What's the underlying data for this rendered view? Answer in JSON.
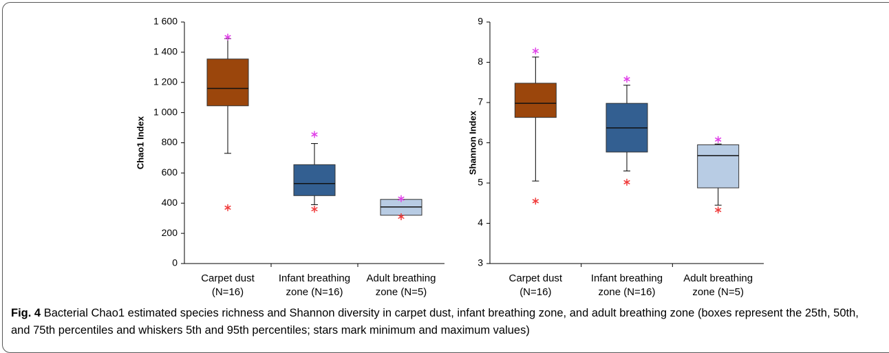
{
  "chart_data": [
    {
      "type": "box",
      "ylabel": "Chao1 Index",
      "categories": [
        [
          "Carpet dust",
          "(N=16)"
        ],
        [
          "Infant breathing",
          "zone (N=16)"
        ],
        [
          "Adult breathing",
          "zone (N=5)"
        ]
      ],
      "colors": [
        "#9b460c",
        "#335f91",
        "#b8cce4"
      ],
      "boxes": [
        {
          "whisker_low": 730,
          "q1": 1045,
          "median": 1160,
          "q3": 1355,
          "whisker_high": 1490,
          "min": 370,
          "max": 1500
        },
        {
          "whisker_low": 390,
          "q1": 450,
          "median": 530,
          "q3": 655,
          "whisker_high": 795,
          "min": 360,
          "max": 855
        },
        {
          "whisker_low": 320,
          "q1": 320,
          "median": 375,
          "q3": 425,
          "whisker_high": 425,
          "min": 310,
          "max": 430
        }
      ],
      "min_color": "#f03a3a",
      "max_color": "#e040e8",
      "ylim": [
        0,
        1600
      ],
      "yticks": [
        0,
        200,
        400,
        600,
        800,
        {
          "value": 1000,
          "label": "1 000"
        },
        {
          "value": 1200,
          "label": "1 200"
        },
        {
          "value": 1400,
          "label": "1 400"
        },
        {
          "value": 1600,
          "label": "1 600"
        }
      ]
    },
    {
      "type": "box",
      "ylabel": "Shannon Index",
      "categories": [
        [
          "Carpet dust",
          "(N=16)"
        ],
        [
          "Infant breathing",
          "zone (N=16)"
        ],
        [
          "Adult breathing",
          "zone (N=5)"
        ]
      ],
      "colors": [
        "#9b460c",
        "#335f91",
        "#b8cce4"
      ],
      "boxes": [
        {
          "whisker_low": 5.05,
          "q1": 6.63,
          "median": 6.98,
          "q3": 7.48,
          "whisker_high": 8.13,
          "min": 4.55,
          "max": 8.28
        },
        {
          "whisker_low": 5.3,
          "q1": 5.77,
          "median": 6.37,
          "q3": 6.98,
          "whisker_high": 7.43,
          "min": 5.02,
          "max": 7.58
        },
        {
          "whisker_low": 4.45,
          "q1": 4.88,
          "median": 5.68,
          "q3": 5.95,
          "whisker_high": 5.97,
          "min": 4.33,
          "max": 6.08
        }
      ],
      "min_color": "#f03a3a",
      "max_color": "#e040e8",
      "ylim": [
        3,
        9
      ],
      "yticks": [
        3,
        4,
        5,
        6,
        7,
        8,
        9
      ]
    }
  ],
  "caption": {
    "label": "Fig. 4",
    "text": "Bacterial Chao1 estimated species richness and Shannon diversity in carpet dust, infant breathing zone, and adult breathing zone (boxes represent the 25th, 50th, and 75th percentiles and whiskers 5th and 95th percentiles; stars mark minimum and maximum values)"
  }
}
